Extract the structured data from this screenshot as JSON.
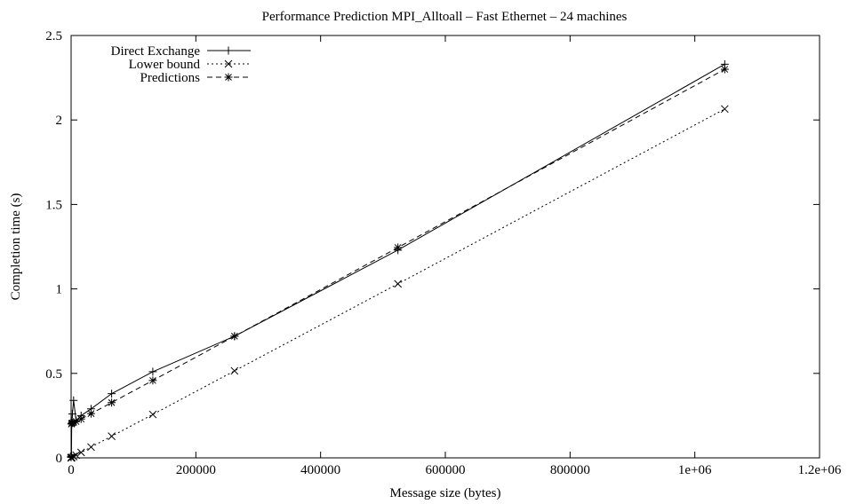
{
  "chart_data": {
    "type": "line",
    "title": "Performance Prediction MPI_Alltoall – Fast Ethernet – 24 machines",
    "xlabel": "Message size (bytes)",
    "ylabel": "Completion time (s)",
    "xlim": [
      0,
      1200000
    ],
    "ylim": [
      0,
      2.5
    ],
    "x_ticks": [
      {
        "value": 0,
        "label": "0"
      },
      {
        "value": 200000,
        "label": "200000"
      },
      {
        "value": 400000,
        "label": "400000"
      },
      {
        "value": 600000,
        "label": "600000"
      },
      {
        "value": 800000,
        "label": "800000"
      },
      {
        "value": 1000000,
        "label": "1e+06"
      },
      {
        "value": 1200000,
        "label": "1.2e+06"
      }
    ],
    "y_ticks": [
      {
        "value": 0,
        "label": "0"
      },
      {
        "value": 0.5,
        "label": "0.5"
      },
      {
        "value": 1,
        "label": "1"
      },
      {
        "value": 1.5,
        "label": "1.5"
      },
      {
        "value": 2,
        "label": "2"
      },
      {
        "value": 2.5,
        "label": "2.5"
      }
    ],
    "grid": false,
    "legend_position": "top-left",
    "series": [
      {
        "name": "Direct Exchange",
        "marker": "plus",
        "dash": "solid",
        "points": [
          [
            0,
            0.005
          ],
          [
            100,
            0.01
          ],
          [
            500,
            0.02
          ],
          [
            1000,
            0.2
          ],
          [
            2000,
            0.26
          ],
          [
            4000,
            0.34
          ],
          [
            8000,
            0.22
          ],
          [
            16000,
            0.25
          ],
          [
            32000,
            0.29
          ],
          [
            65000,
            0.38
          ],
          [
            131000,
            0.51
          ],
          [
            262000,
            0.72
          ],
          [
            524000,
            1.23
          ],
          [
            1048000,
            2.33
          ]
        ]
      },
      {
        "name": "Lower bound",
        "marker": "cross",
        "dash": "dotted",
        "points": [
          [
            0,
            0.0
          ],
          [
            1000,
            0.002
          ],
          [
            4000,
            0.008
          ],
          [
            8000,
            0.016
          ],
          [
            16000,
            0.032
          ],
          [
            32000,
            0.064
          ],
          [
            65000,
            0.128
          ],
          [
            131000,
            0.257
          ],
          [
            262000,
            0.515
          ],
          [
            524000,
            1.03
          ],
          [
            1048000,
            2.065
          ]
        ]
      },
      {
        "name": "Predictions",
        "marker": "star",
        "dash": "dashed",
        "points": [
          [
            0,
            0.003
          ],
          [
            500,
            0.2
          ],
          [
            1000,
            0.205
          ],
          [
            2000,
            0.207
          ],
          [
            4000,
            0.21
          ],
          [
            8000,
            0.215
          ],
          [
            16000,
            0.23
          ],
          [
            32000,
            0.262
          ],
          [
            65000,
            0.327
          ],
          [
            131000,
            0.458
          ],
          [
            262000,
            0.72
          ],
          [
            524000,
            1.245
          ],
          [
            1048000,
            2.3
          ]
        ]
      }
    ]
  }
}
